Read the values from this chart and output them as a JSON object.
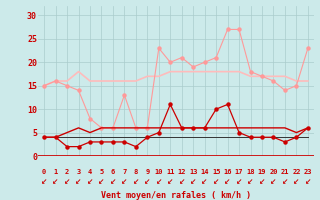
{
  "x": [
    0,
    1,
    2,
    3,
    4,
    5,
    6,
    7,
    8,
    9,
    10,
    11,
    12,
    13,
    14,
    15,
    16,
    17,
    18,
    19,
    20,
    21,
    22,
    23
  ],
  "line1": [
    15,
    16,
    15,
    14,
    8,
    6,
    6,
    13,
    6,
    6,
    23,
    20,
    21,
    19,
    20,
    21,
    27,
    27,
    18,
    17,
    16,
    14,
    15,
    23
  ],
  "line2": [
    15,
    16,
    16,
    18,
    16,
    16,
    16,
    16,
    16,
    17,
    17,
    18,
    18,
    18,
    18,
    18,
    18,
    18,
    17,
    17,
    17,
    17,
    16,
    16
  ],
  "line3": [
    4,
    4,
    2,
    2,
    3,
    3,
    3,
    3,
    2,
    4,
    5,
    11,
    6,
    6,
    6,
    10,
    11,
    5,
    4,
    4,
    4,
    3,
    4,
    6
  ],
  "line4": [
    4,
    4,
    5,
    6,
    5,
    6,
    6,
    6,
    6,
    6,
    6,
    6,
    6,
    6,
    6,
    6,
    6,
    6,
    6,
    6,
    6,
    6,
    5,
    6
  ],
  "line5": [
    4,
    4,
    4,
    4,
    4,
    4,
    4,
    4,
    4,
    4,
    4,
    4,
    4,
    4,
    4,
    4,
    4,
    4,
    4,
    4,
    4,
    4,
    4,
    4
  ],
  "bg_color": "#cceaea",
  "grid_color": "#aacccc",
  "line1_color": "#ff9999",
  "line2_color": "#ffbbbb",
  "line3_color": "#cc0000",
  "line4_color": "#cc0000",
  "line5_color": "#333333",
  "xlabel": "Vent moyen/en rafales ( km/h )",
  "ylim": [
    0,
    32
  ],
  "yticks": [
    0,
    5,
    10,
    15,
    20,
    25,
    30
  ],
  "xlim": [
    -0.5,
    23.5
  ],
  "tick_color": "#cc0000",
  "xlabel_color": "#cc0000",
  "axis_line_color": "#cc0000"
}
